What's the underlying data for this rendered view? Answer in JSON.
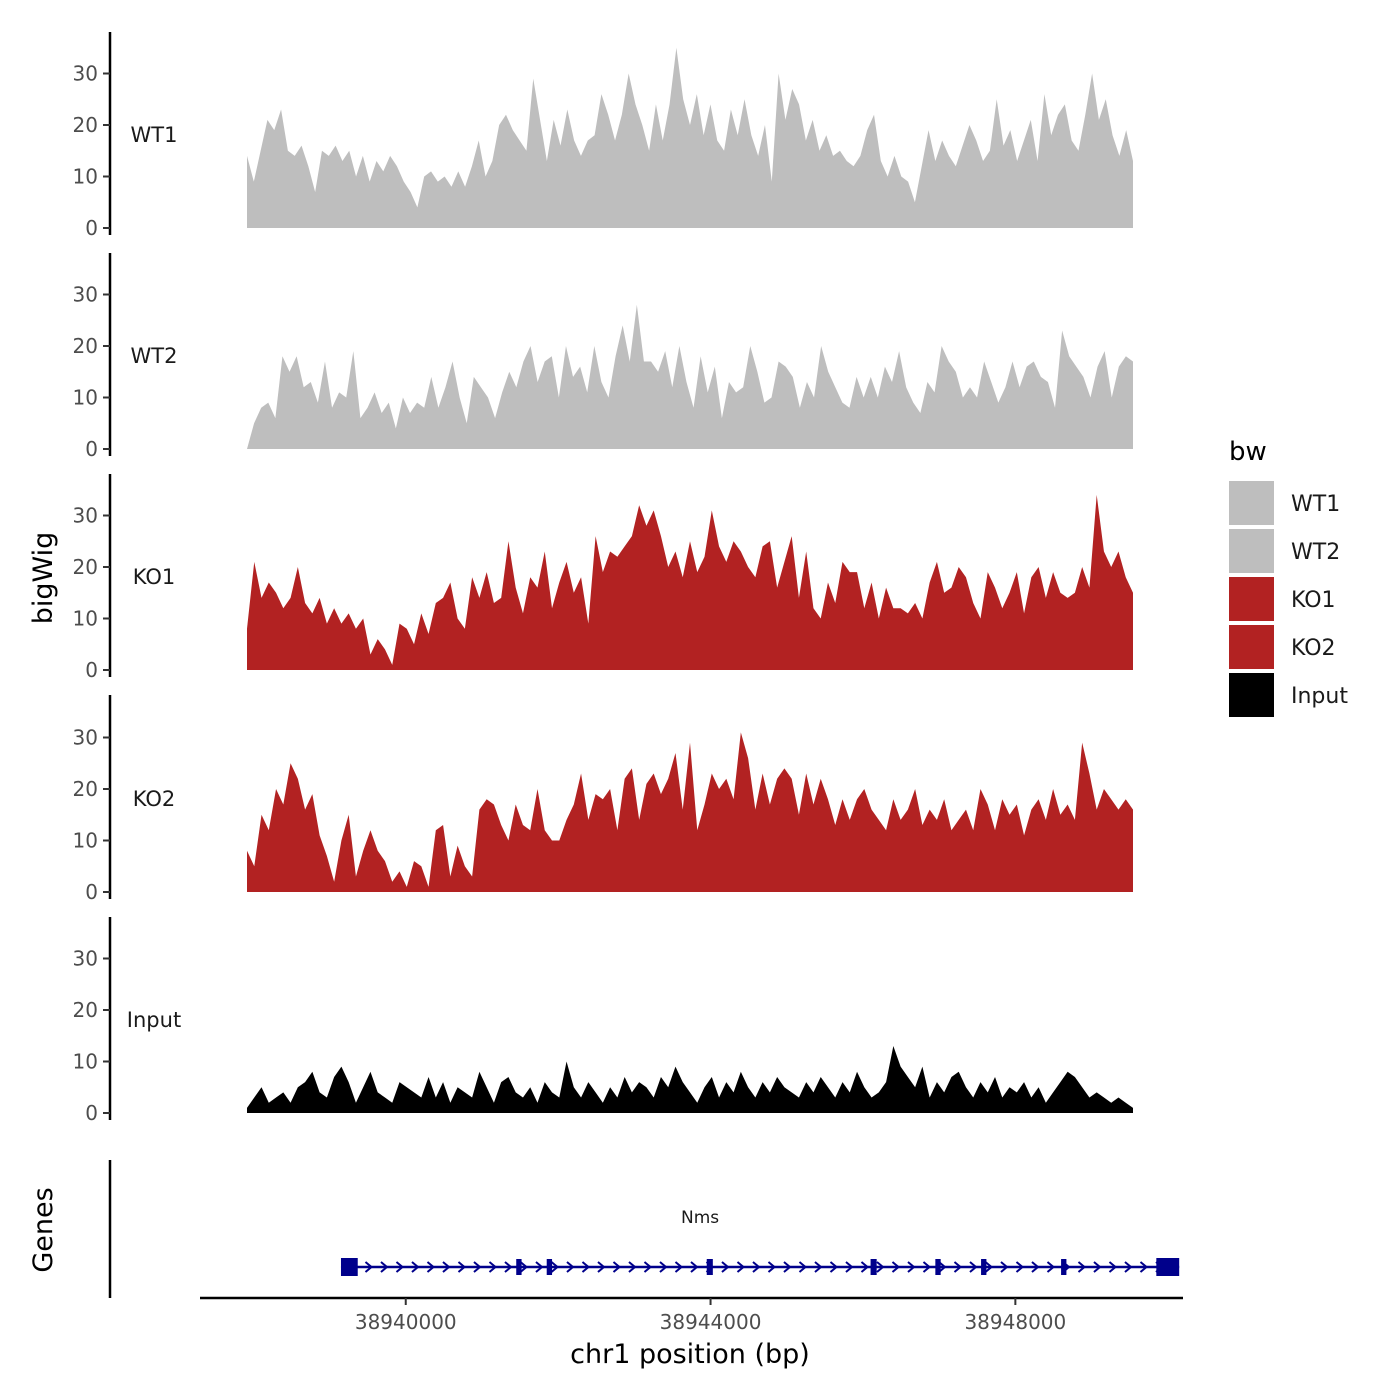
{
  "chart_data": {
    "type": "area",
    "y_axis_title": "bigWig",
    "x_axis_title": "chr1 position (bp)",
    "x_range": [
      38937300,
      38950200
    ],
    "x_ticks": [
      {
        "value": 38940000,
        "label": "38940000"
      },
      {
        "value": 38944000,
        "label": "38944000"
      },
      {
        "value": 38948000,
        "label": "38948000"
      }
    ],
    "ylim": [
      0,
      38
    ],
    "y_ticks": [
      0,
      10,
      20,
      30
    ],
    "tracks": [
      {
        "name": "WT1",
        "color": "#bebebe",
        "values": [
          14,
          9,
          15,
          21,
          19,
          23,
          15,
          14,
          16,
          12,
          7,
          15,
          14,
          16,
          13,
          15,
          10,
          14,
          9,
          13,
          11,
          14,
          12,
          9,
          7,
          4,
          10,
          11,
          9,
          10,
          8,
          11,
          8,
          12,
          17,
          10,
          13,
          20,
          22,
          19,
          17,
          15,
          29,
          21,
          13,
          21,
          16,
          23,
          17,
          14,
          17,
          18,
          26,
          22,
          17,
          22,
          30,
          24,
          20,
          15,
          24,
          17,
          24,
          35,
          25,
          20,
          26,
          18,
          24,
          17,
          15,
          23,
          18,
          25,
          18,
          14,
          20,
          9,
          30,
          21,
          27,
          24,
          17,
          21,
          15,
          18,
          14,
          15,
          13,
          12,
          14,
          19,
          22,
          13,
          10,
          14,
          10,
          9,
          5,
          12,
          19,
          13,
          17,
          14,
          12,
          16,
          20,
          17,
          13,
          15,
          25,
          16,
          19,
          13,
          17,
          21,
          13,
          26,
          18,
          22,
          24,
          17,
          15,
          22,
          30,
          21,
          25,
          18,
          14,
          19,
          13
        ]
      },
      {
        "name": "WT2",
        "color": "#bebebe",
        "values": [
          0,
          5,
          8,
          9,
          6,
          18,
          15,
          18,
          12,
          13,
          9,
          17,
          8,
          11,
          10,
          19,
          6,
          8,
          11,
          7,
          9,
          4,
          10,
          7,
          9,
          8,
          14,
          8,
          12,
          17,
          10,
          5,
          14,
          12,
          10,
          6,
          11,
          15,
          12,
          17,
          20,
          13,
          17,
          18,
          10,
          20,
          14,
          16,
          11,
          20,
          13,
          10,
          18,
          24,
          17,
          28,
          17,
          17,
          15,
          19,
          12,
          20,
          13,
          8,
          18,
          11,
          16,
          6,
          13,
          11,
          12,
          20,
          15,
          9,
          10,
          17,
          16,
          14,
          8,
          13,
          10,
          20,
          15,
          12,
          9,
          8,
          14,
          10,
          14,
          10,
          16,
          13,
          19,
          12,
          9,
          7,
          13,
          11,
          20,
          17,
          15,
          10,
          12,
          10,
          17,
          13,
          9,
          12,
          17,
          12,
          16,
          17,
          14,
          13,
          8,
          23,
          18,
          16,
          14,
          10,
          16,
          19,
          10,
          16,
          18,
          17
        ]
      },
      {
        "name": "KO1",
        "color": "#b22222",
        "values": [
          8,
          21,
          14,
          17,
          15,
          12,
          14,
          20,
          13,
          11,
          14,
          9,
          12,
          9,
          11,
          8,
          10,
          3,
          6,
          4,
          1,
          9,
          8,
          5,
          11,
          7,
          13,
          14,
          17,
          10,
          8,
          18,
          14,
          19,
          13,
          14,
          25,
          16,
          11,
          18,
          16,
          23,
          12,
          17,
          21,
          15,
          18,
          9,
          26,
          19,
          23,
          22,
          24,
          26,
          32,
          28,
          31,
          26,
          20,
          23,
          18,
          25,
          19,
          22,
          31,
          24,
          21,
          25,
          23,
          20,
          18,
          24,
          25,
          16,
          21,
          26,
          14,
          23,
          12,
          10,
          17,
          13,
          21,
          19,
          19,
          12,
          17,
          10,
          16,
          12,
          12,
          11,
          13,
          10,
          17,
          21,
          15,
          16,
          20,
          18,
          13,
          10,
          19,
          16,
          12,
          15,
          19,
          11,
          18,
          20,
          14,
          19,
          15,
          14,
          15,
          20,
          16,
          34,
          23,
          20,
          23,
          18,
          15
        ]
      },
      {
        "name": "KO2",
        "color": "#b22222",
        "values": [
          8,
          5,
          15,
          12,
          20,
          17,
          25,
          22,
          16,
          19,
          11,
          7,
          2,
          10,
          15,
          3,
          8,
          12,
          8,
          6,
          2,
          4,
          1,
          6,
          5,
          1,
          12,
          13,
          3,
          9,
          5,
          3,
          16,
          18,
          17,
          13,
          10,
          17,
          13,
          12,
          20,
          12,
          10,
          10,
          14,
          17,
          23,
          14,
          19,
          18,
          20,
          12,
          22,
          24,
          14,
          21,
          23,
          19,
          22,
          27,
          16,
          29,
          12,
          17,
          23,
          20,
          22,
          18,
          31,
          26,
          16,
          23,
          17,
          22,
          24,
          22,
          15,
          23,
          17,
          22,
          18,
          13,
          18,
          14,
          18,
          20,
          16,
          14,
          12,
          18,
          14,
          16,
          20,
          13,
          16,
          14,
          18,
          12,
          14,
          16,
          12,
          20,
          17,
          12,
          18,
          15,
          17,
          11,
          16,
          18,
          14,
          20,
          15,
          17,
          14,
          29,
          23,
          16,
          20,
          18,
          16,
          18,
          16
        ]
      },
      {
        "name": "Input",
        "color": "#000000",
        "values": [
          1,
          3,
          5,
          2,
          3,
          4,
          2,
          5,
          6,
          8,
          4,
          3,
          7,
          9,
          6,
          2,
          5,
          8,
          4,
          3,
          2,
          6,
          5,
          4,
          3,
          7,
          3,
          6,
          2,
          5,
          4,
          3,
          8,
          5,
          2,
          6,
          7,
          4,
          3,
          5,
          2,
          6,
          4,
          3,
          10,
          5,
          3,
          6,
          4,
          2,
          5,
          3,
          7,
          4,
          6,
          5,
          3,
          7,
          5,
          9,
          6,
          4,
          2,
          5,
          7,
          3,
          6,
          4,
          8,
          5,
          3,
          6,
          4,
          7,
          5,
          4,
          3,
          6,
          4,
          7,
          5,
          3,
          6,
          4,
          8,
          5,
          3,
          4,
          6,
          13,
          9,
          7,
          5,
          9,
          3,
          6,
          4,
          7,
          8,
          5,
          3,
          6,
          4,
          7,
          3,
          5,
          4,
          6,
          3,
          5,
          2,
          4,
          6,
          8,
          7,
          5,
          3,
          4,
          3,
          2,
          3,
          2,
          1
        ]
      }
    ],
    "gene_track": {
      "label": "Genes",
      "gene_name": "Nms",
      "color": "#00008b",
      "start": 38939150,
      "end": 38950150,
      "strand": "+",
      "exons": [
        [
          38939150,
          38939370
        ],
        [
          38941450,
          38941520
        ],
        [
          38941850,
          38941920
        ],
        [
          38943950,
          38944030
        ],
        [
          38946100,
          38946180
        ],
        [
          38946950,
          38947020
        ],
        [
          38947550,
          38947620
        ],
        [
          38948600,
          38948670
        ],
        [
          38949850,
          38950150
        ]
      ]
    }
  },
  "legend": {
    "title": "bw",
    "entries": [
      {
        "label": "WT1",
        "color": "#bebebe"
      },
      {
        "label": "WT2",
        "color": "#bebebe"
      },
      {
        "label": "KO1",
        "color": "#b22222"
      },
      {
        "label": "KO2",
        "color": "#b22222"
      },
      {
        "label": "Input",
        "color": "#000000"
      }
    ]
  }
}
